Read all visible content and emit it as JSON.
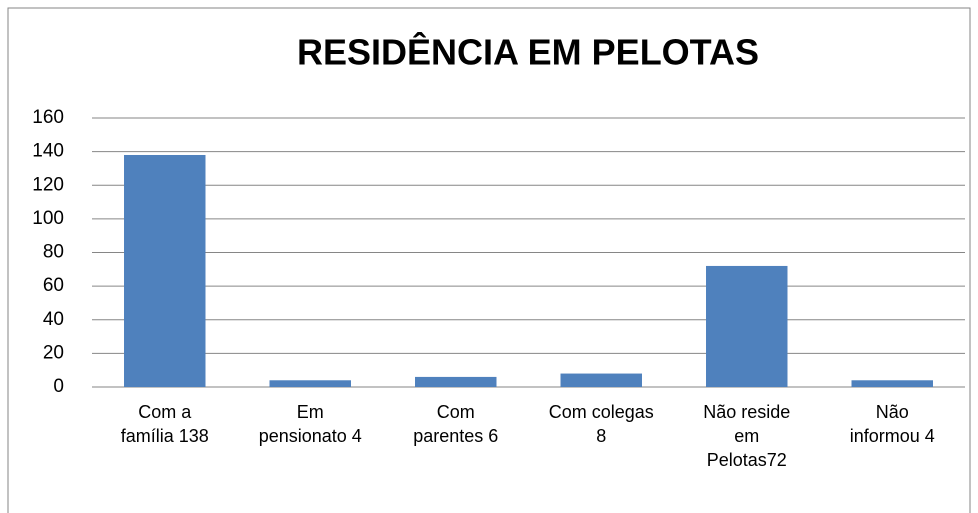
{
  "chart_data": {
    "type": "bar",
    "title": "RESIDÊNCIA EM PELOTAS",
    "categories": [
      "Com a\nfamília 138",
      "Em\npensionato 4",
      "Com\nparentes 6",
      "Com colegas\n8",
      "Não reside\nem\nPelotas72",
      "Não\ninformou 4"
    ],
    "values": [
      138,
      4,
      6,
      8,
      72,
      4
    ],
    "color": "#4f81bd",
    "ylim": [
      0,
      160
    ],
    "yticks": [
      0,
      20,
      40,
      60,
      80,
      100,
      120,
      140,
      160
    ],
    "grid": true
  }
}
